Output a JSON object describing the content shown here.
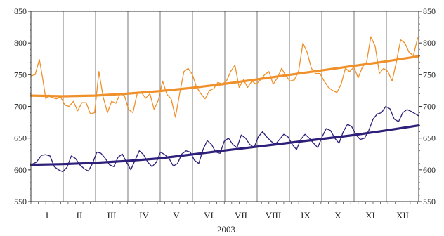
{
  "chart_data": {
    "type": "line",
    "xlabel": "2003",
    "ylabel": "",
    "ylim": [
      550,
      850
    ],
    "yticks": [
      550,
      600,
      650,
      700,
      750,
      800,
      850
    ],
    "y_axis_both_sides": true,
    "grid": "vertical month separators",
    "categories": [
      "I",
      "II",
      "III",
      "IV",
      "V",
      "VI",
      "VII",
      "VIII",
      "IX",
      "X",
      "XI",
      "XII"
    ],
    "x_unit": "day of year",
    "xlim": [
      0,
      365
    ],
    "colors": {
      "orange": "#f0902a",
      "navy": "#2e1f7a",
      "grid": "#555555",
      "axis": "#333333"
    },
    "series": [
      {
        "style": "thin",
        "color": "#f0902a",
        "x": [
          0,
          4,
          8,
          11,
          14,
          17,
          20,
          24,
          28,
          32,
          36,
          40,
          44,
          48,
          52,
          56,
          60,
          64,
          68,
          72,
          76,
          80,
          84,
          88,
          92,
          96,
          100,
          104,
          108,
          112,
          116,
          120,
          124,
          128,
          132,
          136,
          140,
          144,
          148,
          152,
          156,
          160,
          164,
          168,
          172,
          176,
          180,
          184,
          188,
          192,
          196,
          200,
          204,
          208,
          212,
          216,
          220,
          224,
          228,
          232,
          236,
          240,
          244,
          248,
          252,
          256,
          260,
          264,
          268,
          272,
          276,
          280,
          284,
          288,
          292,
          296,
          300,
          304,
          308,
          312,
          316,
          320,
          324,
          328,
          332,
          336,
          340,
          344,
          348,
          352,
          356,
          360,
          364
        ],
        "values": [
          748,
          750,
          774,
          745,
          712,
          718,
          714,
          712,
          715,
          702,
          700,
          708,
          693,
          706,
          706,
          688,
          690,
          755,
          715,
          690,
          708,
          705,
          720,
          717,
          695,
          690,
          720,
          722,
          713,
          720,
          695,
          710,
          740,
          719,
          712,
          683,
          720,
          755,
          760,
          750,
          730,
          720,
          712,
          725,
          728,
          738,
          735,
          740,
          755,
          765,
          730,
          742,
          730,
          740,
          735,
          742,
          750,
          755,
          735,
          745,
          760,
          748,
          740,
          742,
          756,
          800,
          785,
          760,
          752,
          752,
          740,
          730,
          725,
          722,
          735,
          760,
          755,
          762,
          745,
          762,
          770,
          810,
          795,
          752,
          760,
          755,
          740,
          770,
          805,
          800,
          785,
          780,
          808
        ]
      },
      {
        "style": "thin",
        "color": "#2e1f7a",
        "x": [
          0,
          5,
          10,
          14,
          18,
          22,
          26,
          30,
          34,
          38,
          42,
          46,
          50,
          54,
          58,
          62,
          66,
          70,
          74,
          78,
          82,
          86,
          90,
          94,
          98,
          102,
          106,
          110,
          114,
          118,
          122,
          126,
          130,
          134,
          138,
          142,
          146,
          150,
          154,
          158,
          162,
          166,
          170,
          174,
          178,
          182,
          186,
          190,
          194,
          198,
          202,
          206,
          210,
          214,
          218,
          222,
          226,
          230,
          234,
          238,
          242,
          246,
          250,
          254,
          258,
          262,
          266,
          270,
          274,
          278,
          282,
          286,
          290,
          294,
          298,
          302,
          306,
          310,
          314,
          318,
          322,
          326,
          330,
          334,
          338,
          342,
          346,
          350,
          354,
          358,
          362,
          365
        ],
        "values": [
          608,
          612,
          623,
          624,
          622,
          605,
          600,
          597,
          604,
          622,
          618,
          608,
          602,
          598,
          610,
          628,
          626,
          618,
          608,
          605,
          620,
          625,
          612,
          600,
          615,
          630,
          624,
          612,
          605,
          612,
          628,
          624,
          618,
          606,
          610,
          625,
          630,
          628,
          615,
          610,
          632,
          646,
          640,
          628,
          626,
          645,
          650,
          640,
          635,
          655,
          650,
          640,
          635,
          652,
          660,
          652,
          645,
          640,
          648,
          656,
          652,
          640,
          632,
          648,
          656,
          650,
          642,
          635,
          652,
          665,
          662,
          650,
          642,
          660,
          672,
          668,
          655,
          648,
          650,
          662,
          680,
          688,
          690,
          700,
          696,
          680,
          676,
          690,
          695,
          692,
          688,
          685
        ]
      },
      {
        "style": "thick trend",
        "color": "#f0902a",
        "x": [
          0,
          30,
          60,
          90,
          120,
          150,
          180,
          210,
          240,
          270,
          300,
          330,
          365
        ],
        "values": [
          717,
          716,
          717,
          720,
          724,
          729,
          735,
          742,
          749,
          756,
          763,
          770,
          779
        ]
      },
      {
        "style": "thick trend",
        "color": "#2e1f7a",
        "x": [
          0,
          30,
          60,
          90,
          120,
          150,
          180,
          210,
          240,
          270,
          300,
          330,
          365
        ],
        "values": [
          608,
          609,
          611,
          614,
          618,
          624,
          630,
          636,
          642,
          648,
          654,
          661,
          670
        ]
      }
    ]
  }
}
